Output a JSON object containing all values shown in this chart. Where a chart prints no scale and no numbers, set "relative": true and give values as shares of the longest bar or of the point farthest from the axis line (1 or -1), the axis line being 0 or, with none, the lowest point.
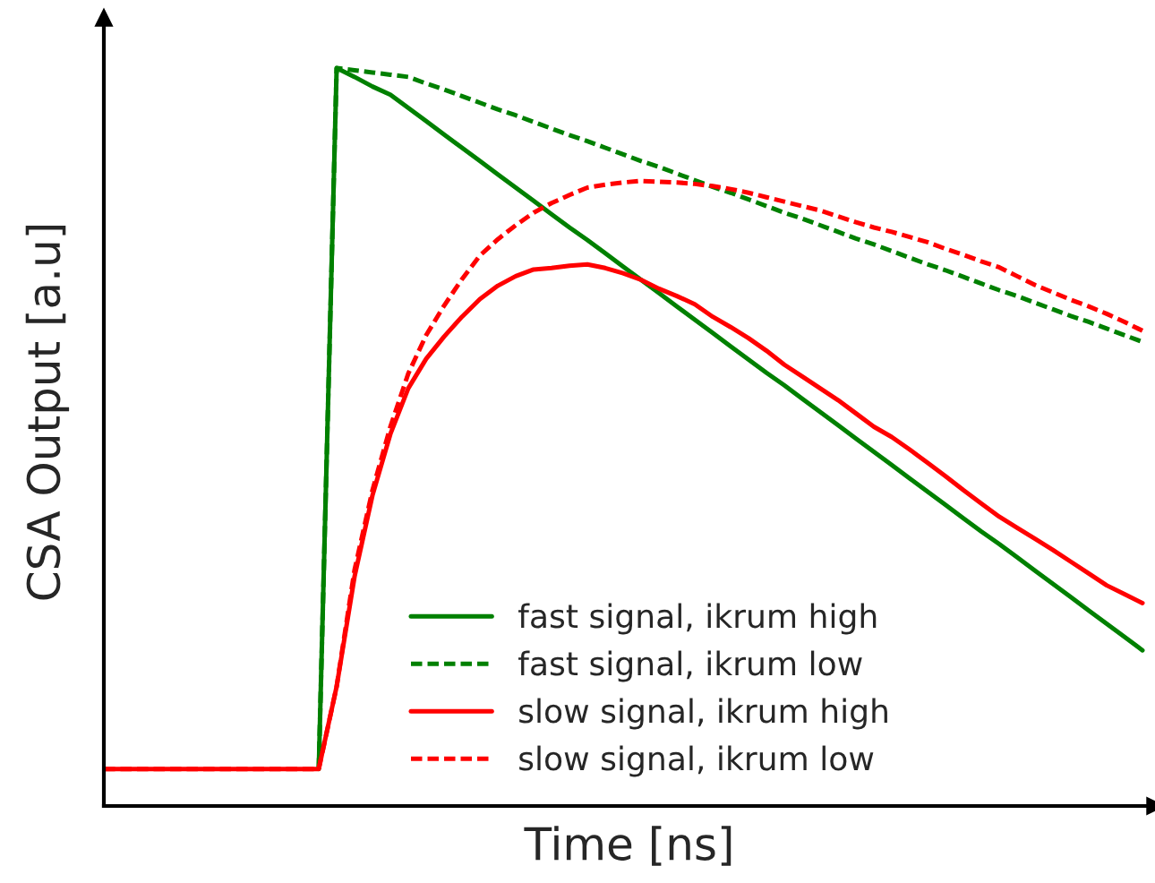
{
  "chart_data": {
    "type": "line",
    "relative": true,
    "xlabel": "Time [ns]",
    "ylabel": "CSA Output [a.u]",
    "legend": "bottom",
    "categories": [
      null,
      null,
      null,
      null,
      null,
      null,
      null,
      null,
      null,
      null,
      null,
      null,
      null,
      null,
      null,
      null,
      null,
      null,
      null,
      null,
      null,
      null,
      null,
      null,
      null,
      null,
      null,
      null,
      null,
      null,
      null,
      null,
      null,
      null,
      null,
      null,
      null,
      null,
      null,
      null,
      null,
      null,
      null,
      null,
      null,
      null,
      null,
      null,
      null,
      null,
      null,
      null,
      null,
      null,
      null,
      null,
      null,
      null,
      null
    ],
    "series": [
      {
        "name": "fast signal, ikrum high",
        "color": "#008000",
        "line_style": "solid",
        "values": [
          null,
          null,
          null,
          null,
          null,
          null,
          null,
          null,
          null,
          null,
          null,
          null,
          0.05,
          1.0,
          0.988,
          0.975,
          0.964,
          0.946,
          0.928,
          0.91,
          0.892,
          0.874,
          0.856,
          0.838,
          0.82,
          0.802,
          0.784,
          0.767,
          0.749,
          0.731,
          0.713,
          0.695,
          0.677,
          0.659,
          0.641,
          0.623,
          0.605,
          0.587,
          0.57,
          0.552,
          0.534,
          0.516,
          0.498,
          0.48,
          0.462,
          0.444,
          0.426,
          0.408,
          0.39,
          0.372,
          0.355,
          0.337,
          0.319,
          0.301,
          0.283,
          0.265,
          0.247,
          0.229,
          0.211
        ]
      },
      {
        "name": "fast signal, ikrum low",
        "color": "#008000",
        "line_style": "dashed",
        "values": [
          null,
          null,
          null,
          null,
          null,
          null,
          null,
          null,
          null,
          null,
          null,
          null,
          0.05,
          1.0,
          0.997,
          0.994,
          0.991,
          0.988,
          0.979,
          0.971,
          0.962,
          0.953,
          0.944,
          0.936,
          0.927,
          0.918,
          0.909,
          0.901,
          0.892,
          0.883,
          0.874,
          0.866,
          0.857,
          0.848,
          0.839,
          0.831,
          0.822,
          0.813,
          0.804,
          0.796,
          0.787,
          0.778,
          0.769,
          0.761,
          0.752,
          0.743,
          0.734,
          0.726,
          0.717,
          0.708,
          0.699,
          0.691,
          0.682,
          0.673,
          0.664,
          0.656,
          0.647,
          0.638,
          0.629
        ]
      },
      {
        "name": "slow signal, ikrum high",
        "color": "#ff0000",
        "line_style": "solid",
        "values": [
          0.05,
          0.05,
          0.05,
          0.05,
          0.05,
          0.05,
          0.05,
          0.05,
          0.05,
          0.05,
          0.05,
          0.05,
          0.05,
          0.162,
          0.311,
          0.421,
          0.504,
          0.566,
          0.606,
          0.636,
          0.663,
          0.687,
          0.705,
          0.718,
          0.727,
          0.729,
          0.732,
          0.734,
          0.729,
          0.722,
          0.713,
          0.701,
          0.691,
          0.68,
          0.663,
          0.649,
          0.634,
          0.617,
          0.598,
          0.582,
          0.566,
          0.55,
          0.532,
          0.514,
          0.5,
          0.483,
          0.465,
          0.447,
          0.428,
          0.41,
          0.392,
          0.377,
          0.362,
          0.347,
          0.331,
          0.315,
          0.299,
          0.287,
          0.275
        ]
      },
      {
        "name": "slow signal, ikrum low",
        "color": "#ff0000",
        "line_style": "dashed",
        "values": [
          0.05,
          0.05,
          0.05,
          0.05,
          0.05,
          0.05,
          0.05,
          0.05,
          0.05,
          0.05,
          0.05,
          0.05,
          0.05,
          0.162,
          0.32,
          0.428,
          0.514,
          0.586,
          0.638,
          0.678,
          0.714,
          0.746,
          0.768,
          0.787,
          0.804,
          0.817,
          0.828,
          0.838,
          0.842,
          0.845,
          0.847,
          0.846,
          0.845,
          0.843,
          0.84,
          0.836,
          0.831,
          0.825,
          0.819,
          0.813,
          0.807,
          0.799,
          0.791,
          0.784,
          0.778,
          0.771,
          0.764,
          0.755,
          0.747,
          0.738,
          0.73,
          0.718,
          0.706,
          0.696,
          0.686,
          0.677,
          0.667,
          0.656,
          0.644
        ]
      }
    ]
  }
}
